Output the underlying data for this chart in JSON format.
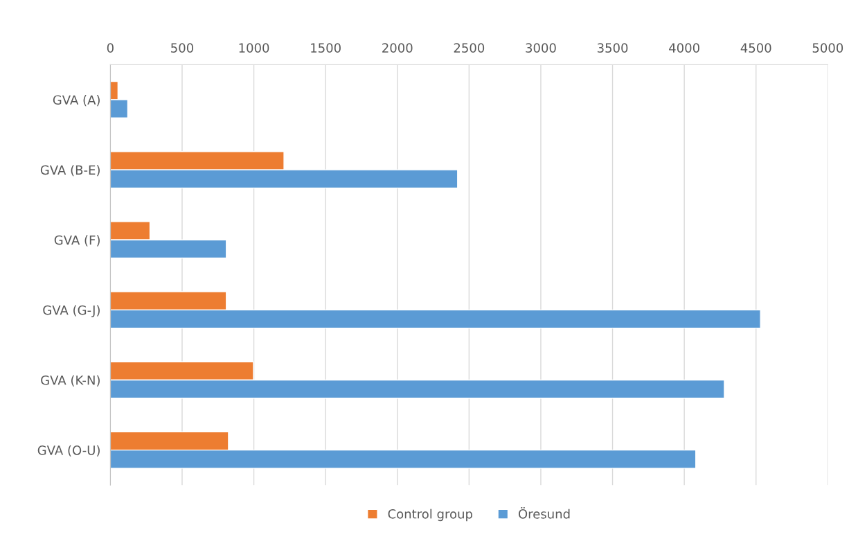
{
  "chart_data": {
    "type": "bar",
    "orientation": "horizontal",
    "categories": [
      "GVA (A)",
      "GVA (B-E)",
      "GVA (F)",
      "GVA (G-J)",
      "GVA (K-N)",
      "GVA (O-U)"
    ],
    "series": [
      {
        "name": "Control group",
        "color": "#ed7d31",
        "values": [
          53,
          1210,
          276,
          808,
          997,
          823
        ]
      },
      {
        "name": "Öresund",
        "color": "#5b9bd5",
        "values": [
          121,
          2420,
          808,
          4531,
          4279,
          4080
        ]
      }
    ],
    "xlim": [
      0,
      5000
    ],
    "xticks": [
      0,
      500,
      1000,
      1500,
      2000,
      2500,
      3000,
      3500,
      4000,
      4500,
      5000
    ],
    "grid": "x",
    "legend": "bottom"
  }
}
